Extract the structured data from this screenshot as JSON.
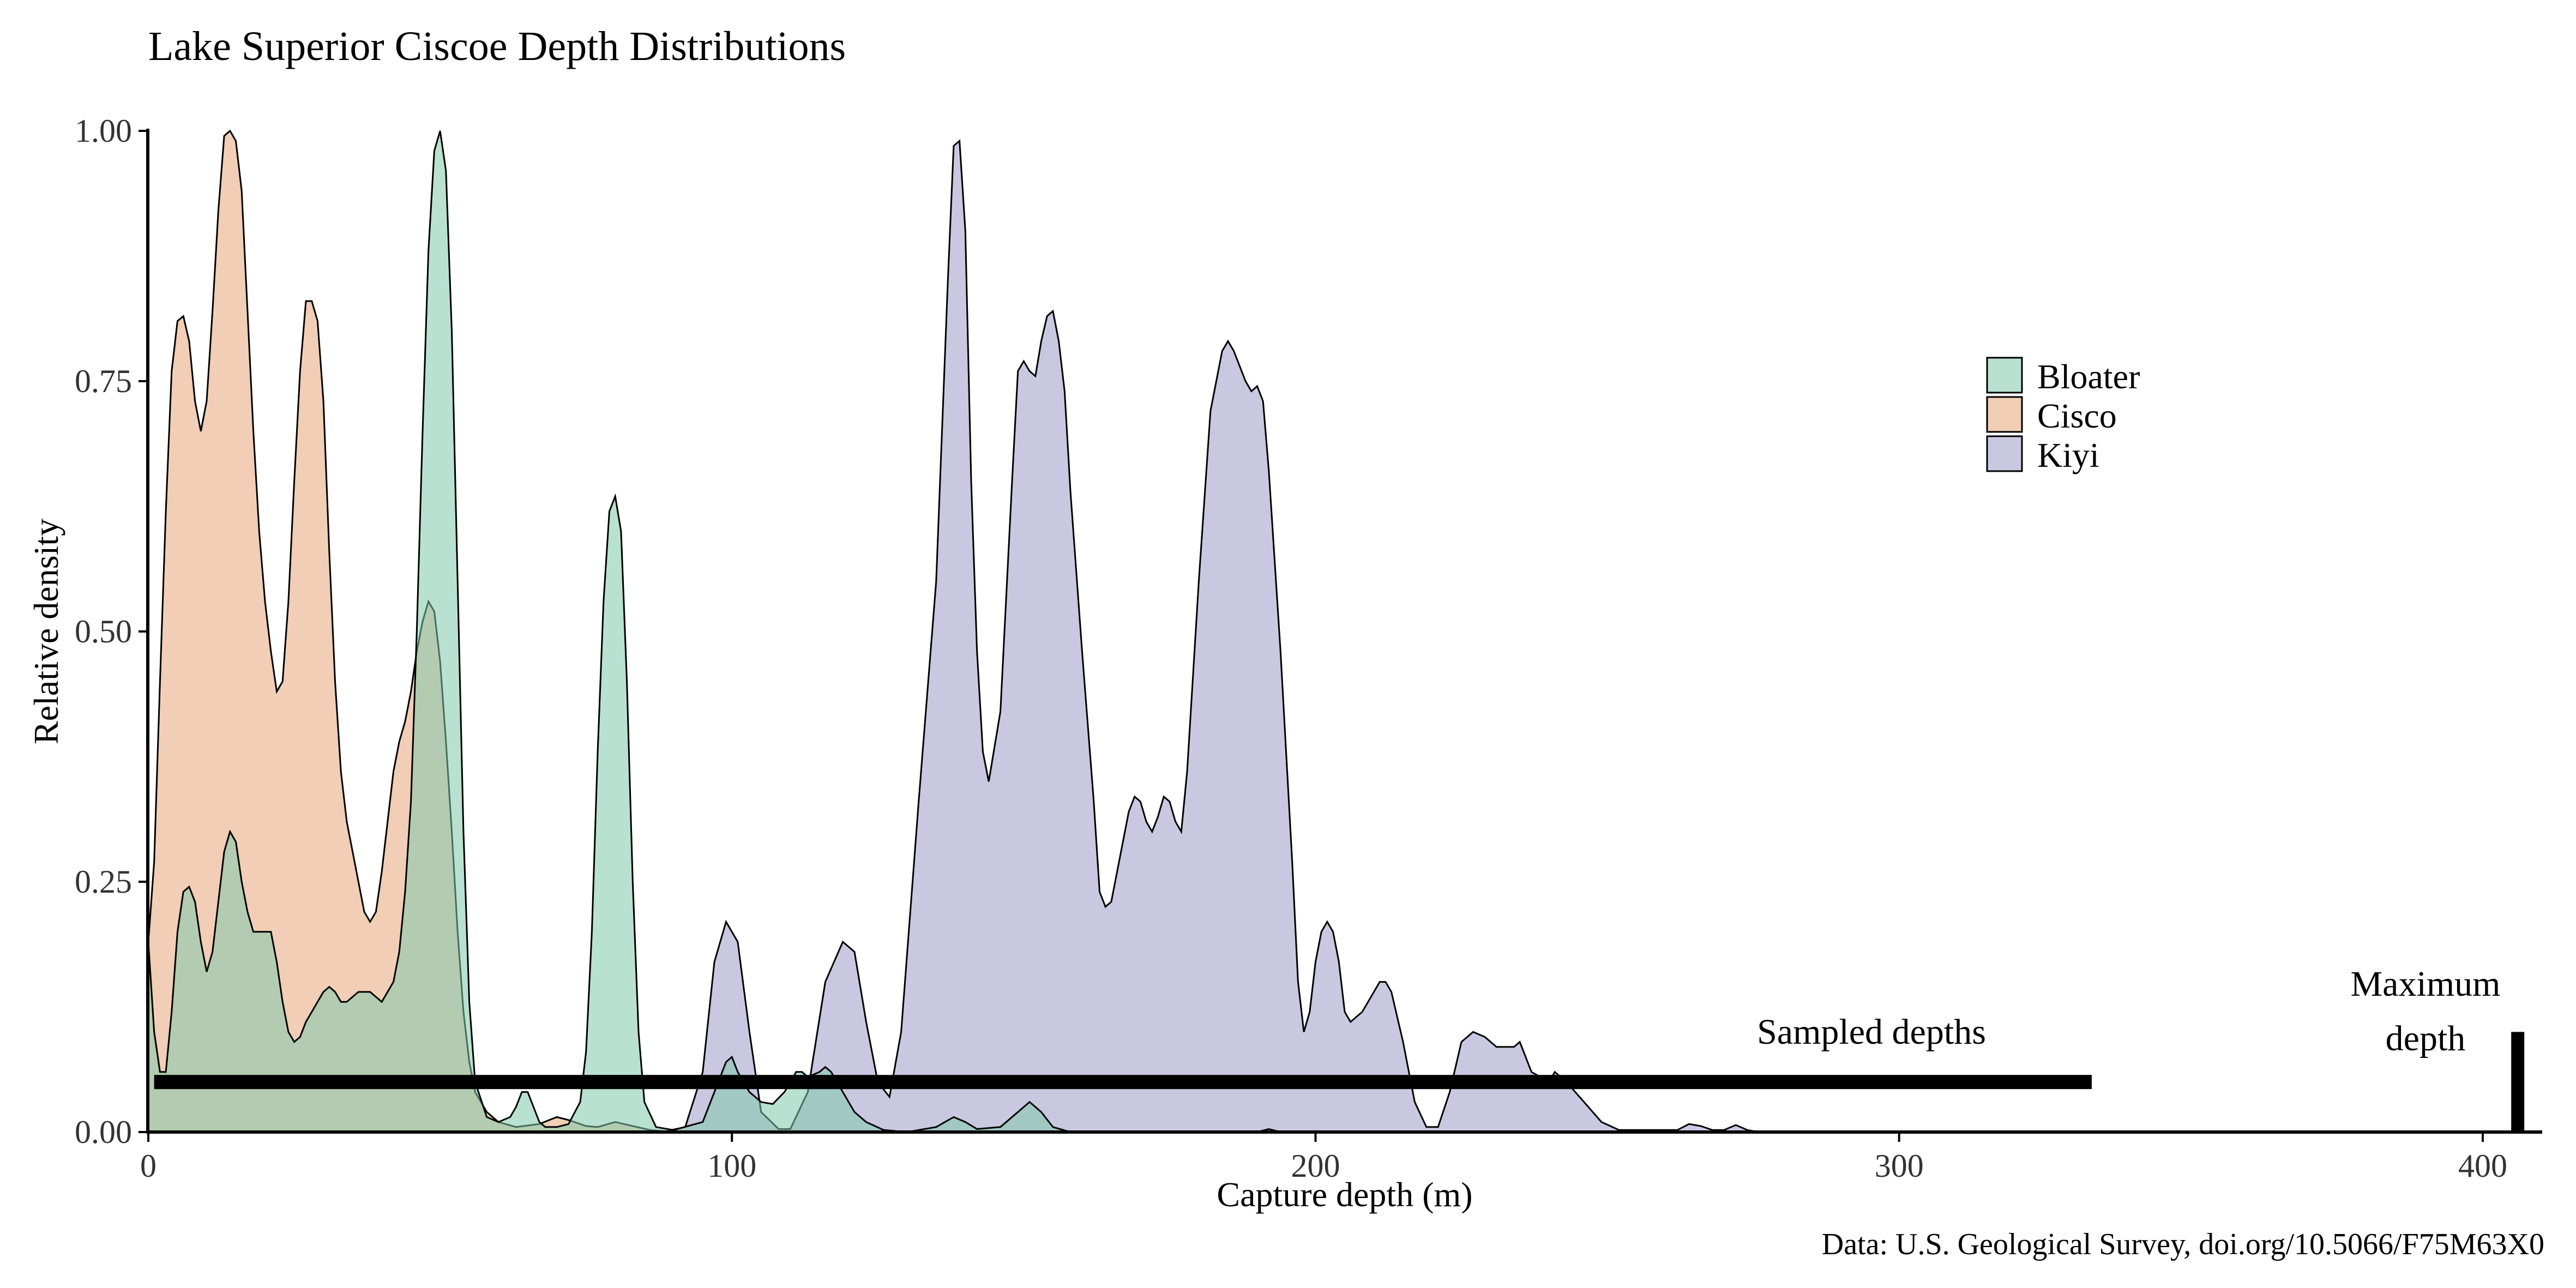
{
  "chart_data": {
    "type": "area",
    "title": "Lake Superior Ciscoe Depth Distributions",
    "xlabel": "Capture depth (m)",
    "ylabel": "Relative density",
    "caption": "Data: U.S. Geological Survey, doi.org/10.5066/F75M63X0",
    "xlim": [
      0,
      410
    ],
    "ylim": [
      0,
      1
    ],
    "x_ticks": [
      0,
      100,
      200,
      300,
      400
    ],
    "y_ticks": [
      0,
      0.25,
      0.5,
      0.75,
      1
    ],
    "x_tick_labels": [
      "0",
      "100",
      "200",
      "300",
      "400"
    ],
    "y_tick_labels": [
      "0.00",
      "0.25",
      "0.50",
      "0.75",
      "1.00"
    ],
    "legend": {
      "position": "top-right",
      "entries": [
        "Bloater",
        "Cisco",
        "Kiyi"
      ]
    },
    "series": [
      {
        "name": "Kiyi",
        "color": "#9e9ac8",
        "points": [
          [
            0,
            0
          ],
          [
            88,
            0
          ],
          [
            92,
            0.005
          ],
          [
            95,
            0.06
          ],
          [
            97,
            0.17
          ],
          [
            99,
            0.21
          ],
          [
            101,
            0.19
          ],
          [
            103,
            0.1
          ],
          [
            105,
            0.02
          ],
          [
            108,
            0.003
          ],
          [
            110,
            0.003
          ],
          [
            113,
            0.04
          ],
          [
            116,
            0.15
          ],
          [
            119,
            0.19
          ],
          [
            121,
            0.18
          ],
          [
            123,
            0.11
          ],
          [
            125,
            0.05
          ],
          [
            127,
            0.035
          ],
          [
            129,
            0.1
          ],
          [
            132,
            0.33
          ],
          [
            135,
            0.55
          ],
          [
            137,
            0.85
          ],
          [
            138,
            0.985
          ],
          [
            139,
            0.99
          ],
          [
            140,
            0.9
          ],
          [
            141,
            0.65
          ],
          [
            142,
            0.48
          ],
          [
            143,
            0.38
          ],
          [
            144,
            0.35
          ],
          [
            146,
            0.42
          ],
          [
            148,
            0.65
          ],
          [
            149,
            0.76
          ],
          [
            150,
            0.77
          ],
          [
            151,
            0.76
          ],
          [
            152,
            0.755
          ],
          [
            153,
            0.79
          ],
          [
            154,
            0.815
          ],
          [
            155,
            0.82
          ],
          [
            156,
            0.79
          ],
          [
            157,
            0.74
          ],
          [
            158,
            0.64
          ],
          [
            160,
            0.48
          ],
          [
            162,
            0.33
          ],
          [
            163,
            0.24
          ],
          [
            164,
            0.225
          ],
          [
            165,
            0.23
          ],
          [
            167,
            0.29
          ],
          [
            168,
            0.32
          ],
          [
            169,
            0.335
          ],
          [
            170,
            0.33
          ],
          [
            171,
            0.31
          ],
          [
            172,
            0.3
          ],
          [
            173,
            0.315
          ],
          [
            174,
            0.335
          ],
          [
            175,
            0.33
          ],
          [
            176,
            0.31
          ],
          [
            177,
            0.3
          ],
          [
            178,
            0.36
          ],
          [
            180,
            0.55
          ],
          [
            182,
            0.72
          ],
          [
            184,
            0.78
          ],
          [
            185,
            0.79
          ],
          [
            186,
            0.78
          ],
          [
            188,
            0.75
          ],
          [
            189,
            0.74
          ],
          [
            190,
            0.745
          ],
          [
            191,
            0.73
          ],
          [
            192,
            0.66
          ],
          [
            194,
            0.48
          ],
          [
            196,
            0.27
          ],
          [
            197,
            0.15
          ],
          [
            198,
            0.1
          ],
          [
            199,
            0.12
          ],
          [
            200,
            0.17
          ],
          [
            201,
            0.2
          ],
          [
            202,
            0.21
          ],
          [
            203,
            0.2
          ],
          [
            204,
            0.17
          ],
          [
            205,
            0.12
          ],
          [
            206,
            0.11
          ],
          [
            208,
            0.12
          ],
          [
            211,
            0.15
          ],
          [
            212,
            0.15
          ],
          [
            213,
            0.14
          ],
          [
            215,
            0.09
          ],
          [
            217,
            0.03
          ],
          [
            219,
            0.005
          ],
          [
            221,
            0.005
          ],
          [
            223,
            0.04
          ],
          [
            225,
            0.09
          ],
          [
            227,
            0.1
          ],
          [
            229,
            0.095
          ],
          [
            231,
            0.085
          ],
          [
            232,
            0.085
          ],
          [
            234,
            0.085
          ],
          [
            235,
            0.09
          ],
          [
            237,
            0.06
          ],
          [
            240,
            0.05
          ],
          [
            241,
            0.06
          ],
          [
            243,
            0.05
          ],
          [
            246,
            0.03
          ],
          [
            249,
            0.01
          ],
          [
            252,
            0.002
          ],
          [
            262,
            0.002
          ],
          [
            264,
            0.008
          ],
          [
            266,
            0.006
          ],
          [
            268,
            0.002
          ],
          [
            270,
            0.002
          ],
          [
            272,
            0.007
          ],
          [
            274,
            0.002
          ],
          [
            276,
            0
          ],
          [
            280,
            0
          ]
        ]
      },
      {
        "name": "Cisco",
        "color": "#e6a579",
        "points": [
          [
            0,
            0.19
          ],
          [
            1,
            0.27
          ],
          [
            2,
            0.45
          ],
          [
            3,
            0.62
          ],
          [
            4,
            0.76
          ],
          [
            5,
            0.81
          ],
          [
            6,
            0.815
          ],
          [
            7,
            0.79
          ],
          [
            8,
            0.73
          ],
          [
            9,
            0.7
          ],
          [
            10,
            0.73
          ],
          [
            11,
            0.82
          ],
          [
            12,
            0.92
          ],
          [
            13,
            0.995
          ],
          [
            14,
            1.0
          ],
          [
            15,
            0.99
          ],
          [
            16,
            0.94
          ],
          [
            17,
            0.82
          ],
          [
            18,
            0.7
          ],
          [
            19,
            0.6
          ],
          [
            20,
            0.53
          ],
          [
            21,
            0.48
          ],
          [
            22,
            0.44
          ],
          [
            23,
            0.45
          ],
          [
            24,
            0.53
          ],
          [
            25,
            0.65
          ],
          [
            26,
            0.76
          ],
          [
            27,
            0.83
          ],
          [
            28,
            0.83
          ],
          [
            29,
            0.81
          ],
          [
            30,
            0.73
          ],
          [
            31,
            0.58
          ],
          [
            32,
            0.45
          ],
          [
            33,
            0.36
          ],
          [
            34,
            0.31
          ],
          [
            35,
            0.28
          ],
          [
            36,
            0.25
          ],
          [
            37,
            0.22
          ],
          [
            38,
            0.21
          ],
          [
            39,
            0.22
          ],
          [
            40,
            0.26
          ],
          [
            41,
            0.31
          ],
          [
            42,
            0.36
          ],
          [
            43,
            0.39
          ],
          [
            44,
            0.41
          ],
          [
            45,
            0.44
          ],
          [
            46,
            0.48
          ],
          [
            47,
            0.51
          ],
          [
            48,
            0.53
          ],
          [
            49,
            0.52
          ],
          [
            50,
            0.47
          ],
          [
            51,
            0.39
          ],
          [
            52,
            0.3
          ],
          [
            53,
            0.2
          ],
          [
            54,
            0.12
          ],
          [
            55,
            0.07
          ],
          [
            56,
            0.04
          ],
          [
            58,
            0.02
          ],
          [
            60,
            0.01
          ],
          [
            63,
            0.005
          ],
          [
            67,
            0.008
          ],
          [
            70,
            0.015
          ],
          [
            72,
            0.012
          ],
          [
            75,
            0.006
          ],
          [
            77,
            0.005
          ],
          [
            80,
            0.01
          ],
          [
            83,
            0.006
          ],
          [
            86,
            0.002
          ],
          [
            90,
            0
          ]
        ]
      },
      {
        "name": "Bloater",
        "color": "#7fc8ab",
        "points": [
          [
            0,
            0.19
          ],
          [
            1,
            0.1
          ],
          [
            2,
            0.06
          ],
          [
            3,
            0.06
          ],
          [
            4,
            0.12
          ],
          [
            5,
            0.2
          ],
          [
            6,
            0.24
          ],
          [
            7,
            0.245
          ],
          [
            8,
            0.23
          ],
          [
            9,
            0.19
          ],
          [
            10,
            0.16
          ],
          [
            11,
            0.18
          ],
          [
            12,
            0.23
          ],
          [
            13,
            0.28
          ],
          [
            14,
            0.3
          ],
          [
            15,
            0.29
          ],
          [
            16,
            0.25
          ],
          [
            17,
            0.22
          ],
          [
            18,
            0.2
          ],
          [
            19,
            0.2
          ],
          [
            20,
            0.2
          ],
          [
            21,
            0.2
          ],
          [
            22,
            0.17
          ],
          [
            23,
            0.13
          ],
          [
            24,
            0.1
          ],
          [
            25,
            0.09
          ],
          [
            26,
            0.095
          ],
          [
            27,
            0.11
          ],
          [
            28,
            0.12
          ],
          [
            29,
            0.13
          ],
          [
            30,
            0.14
          ],
          [
            31,
            0.145
          ],
          [
            32,
            0.14
          ],
          [
            33,
            0.13
          ],
          [
            34,
            0.13
          ],
          [
            35,
            0.135
          ],
          [
            36,
            0.14
          ],
          [
            37,
            0.14
          ],
          [
            38,
            0.14
          ],
          [
            39,
            0.135
          ],
          [
            40,
            0.13
          ],
          [
            41,
            0.14
          ],
          [
            42,
            0.15
          ],
          [
            43,
            0.18
          ],
          [
            44,
            0.24
          ],
          [
            45,
            0.33
          ],
          [
            46,
            0.5
          ],
          [
            47,
            0.7
          ],
          [
            48,
            0.88
          ],
          [
            49,
            0.98
          ],
          [
            50,
            1.0
          ],
          [
            51,
            0.96
          ],
          [
            52,
            0.8
          ],
          [
            53,
            0.55
          ],
          [
            54,
            0.3
          ],
          [
            55,
            0.13
          ],
          [
            56,
            0.05
          ],
          [
            58,
            0.015
          ],
          [
            60,
            0.01
          ],
          [
            62,
            0.015
          ],
          [
            63,
            0.025
          ],
          [
            64,
            0.04
          ],
          [
            65,
            0.04
          ],
          [
            66,
            0.025
          ],
          [
            67,
            0.01
          ],
          [
            68,
            0.005
          ],
          [
            70,
            0.005
          ],
          [
            72,
            0.008
          ],
          [
            74,
            0.03
          ],
          [
            75,
            0.08
          ],
          [
            76,
            0.2
          ],
          [
            77,
            0.38
          ],
          [
            78,
            0.53
          ],
          [
            79,
            0.62
          ],
          [
            80,
            0.635
          ],
          [
            81,
            0.6
          ],
          [
            82,
            0.45
          ],
          [
            83,
            0.25
          ],
          [
            84,
            0.1
          ],
          [
            85,
            0.03
          ],
          [
            87,
            0.005
          ],
          [
            90,
            0.002
          ],
          [
            95,
            0.01
          ],
          [
            97,
            0.04
          ],
          [
            99,
            0.07
          ],
          [
            100,
            0.075
          ],
          [
            101,
            0.06
          ],
          [
            103,
            0.04
          ],
          [
            105,
            0.03
          ],
          [
            107,
            0.028
          ],
          [
            109,
            0.04
          ],
          [
            111,
            0.06
          ],
          [
            112,
            0.06
          ],
          [
            113,
            0.055
          ],
          [
            115,
            0.06
          ],
          [
            116,
            0.065
          ],
          [
            117,
            0.06
          ],
          [
            119,
            0.04
          ],
          [
            121,
            0.02
          ],
          [
            123,
            0.01
          ],
          [
            126,
            0.002
          ],
          [
            130,
            0
          ],
          [
            135,
            0.005
          ],
          [
            138,
            0.015
          ],
          [
            140,
            0.01
          ],
          [
            142,
            0.003
          ],
          [
            146,
            0.005
          ],
          [
            149,
            0.02
          ],
          [
            151,
            0.03
          ],
          [
            153,
            0.02
          ],
          [
            155,
            0.005
          ],
          [
            158,
            0
          ],
          [
            190,
            0
          ],
          [
            192,
            0.003
          ],
          [
            194,
            0
          ],
          [
            200,
            0
          ]
        ]
      }
    ],
    "annotations": [
      {
        "text": "Sampled depths",
        "kind": "range",
        "x_range": [
          1,
          333
        ],
        "y": 0.05
      },
      {
        "text": "Maximum",
        "line2": "depth",
        "kind": "marker",
        "x": 406,
        "y_range": [
          0,
          0.1
        ]
      }
    ]
  }
}
